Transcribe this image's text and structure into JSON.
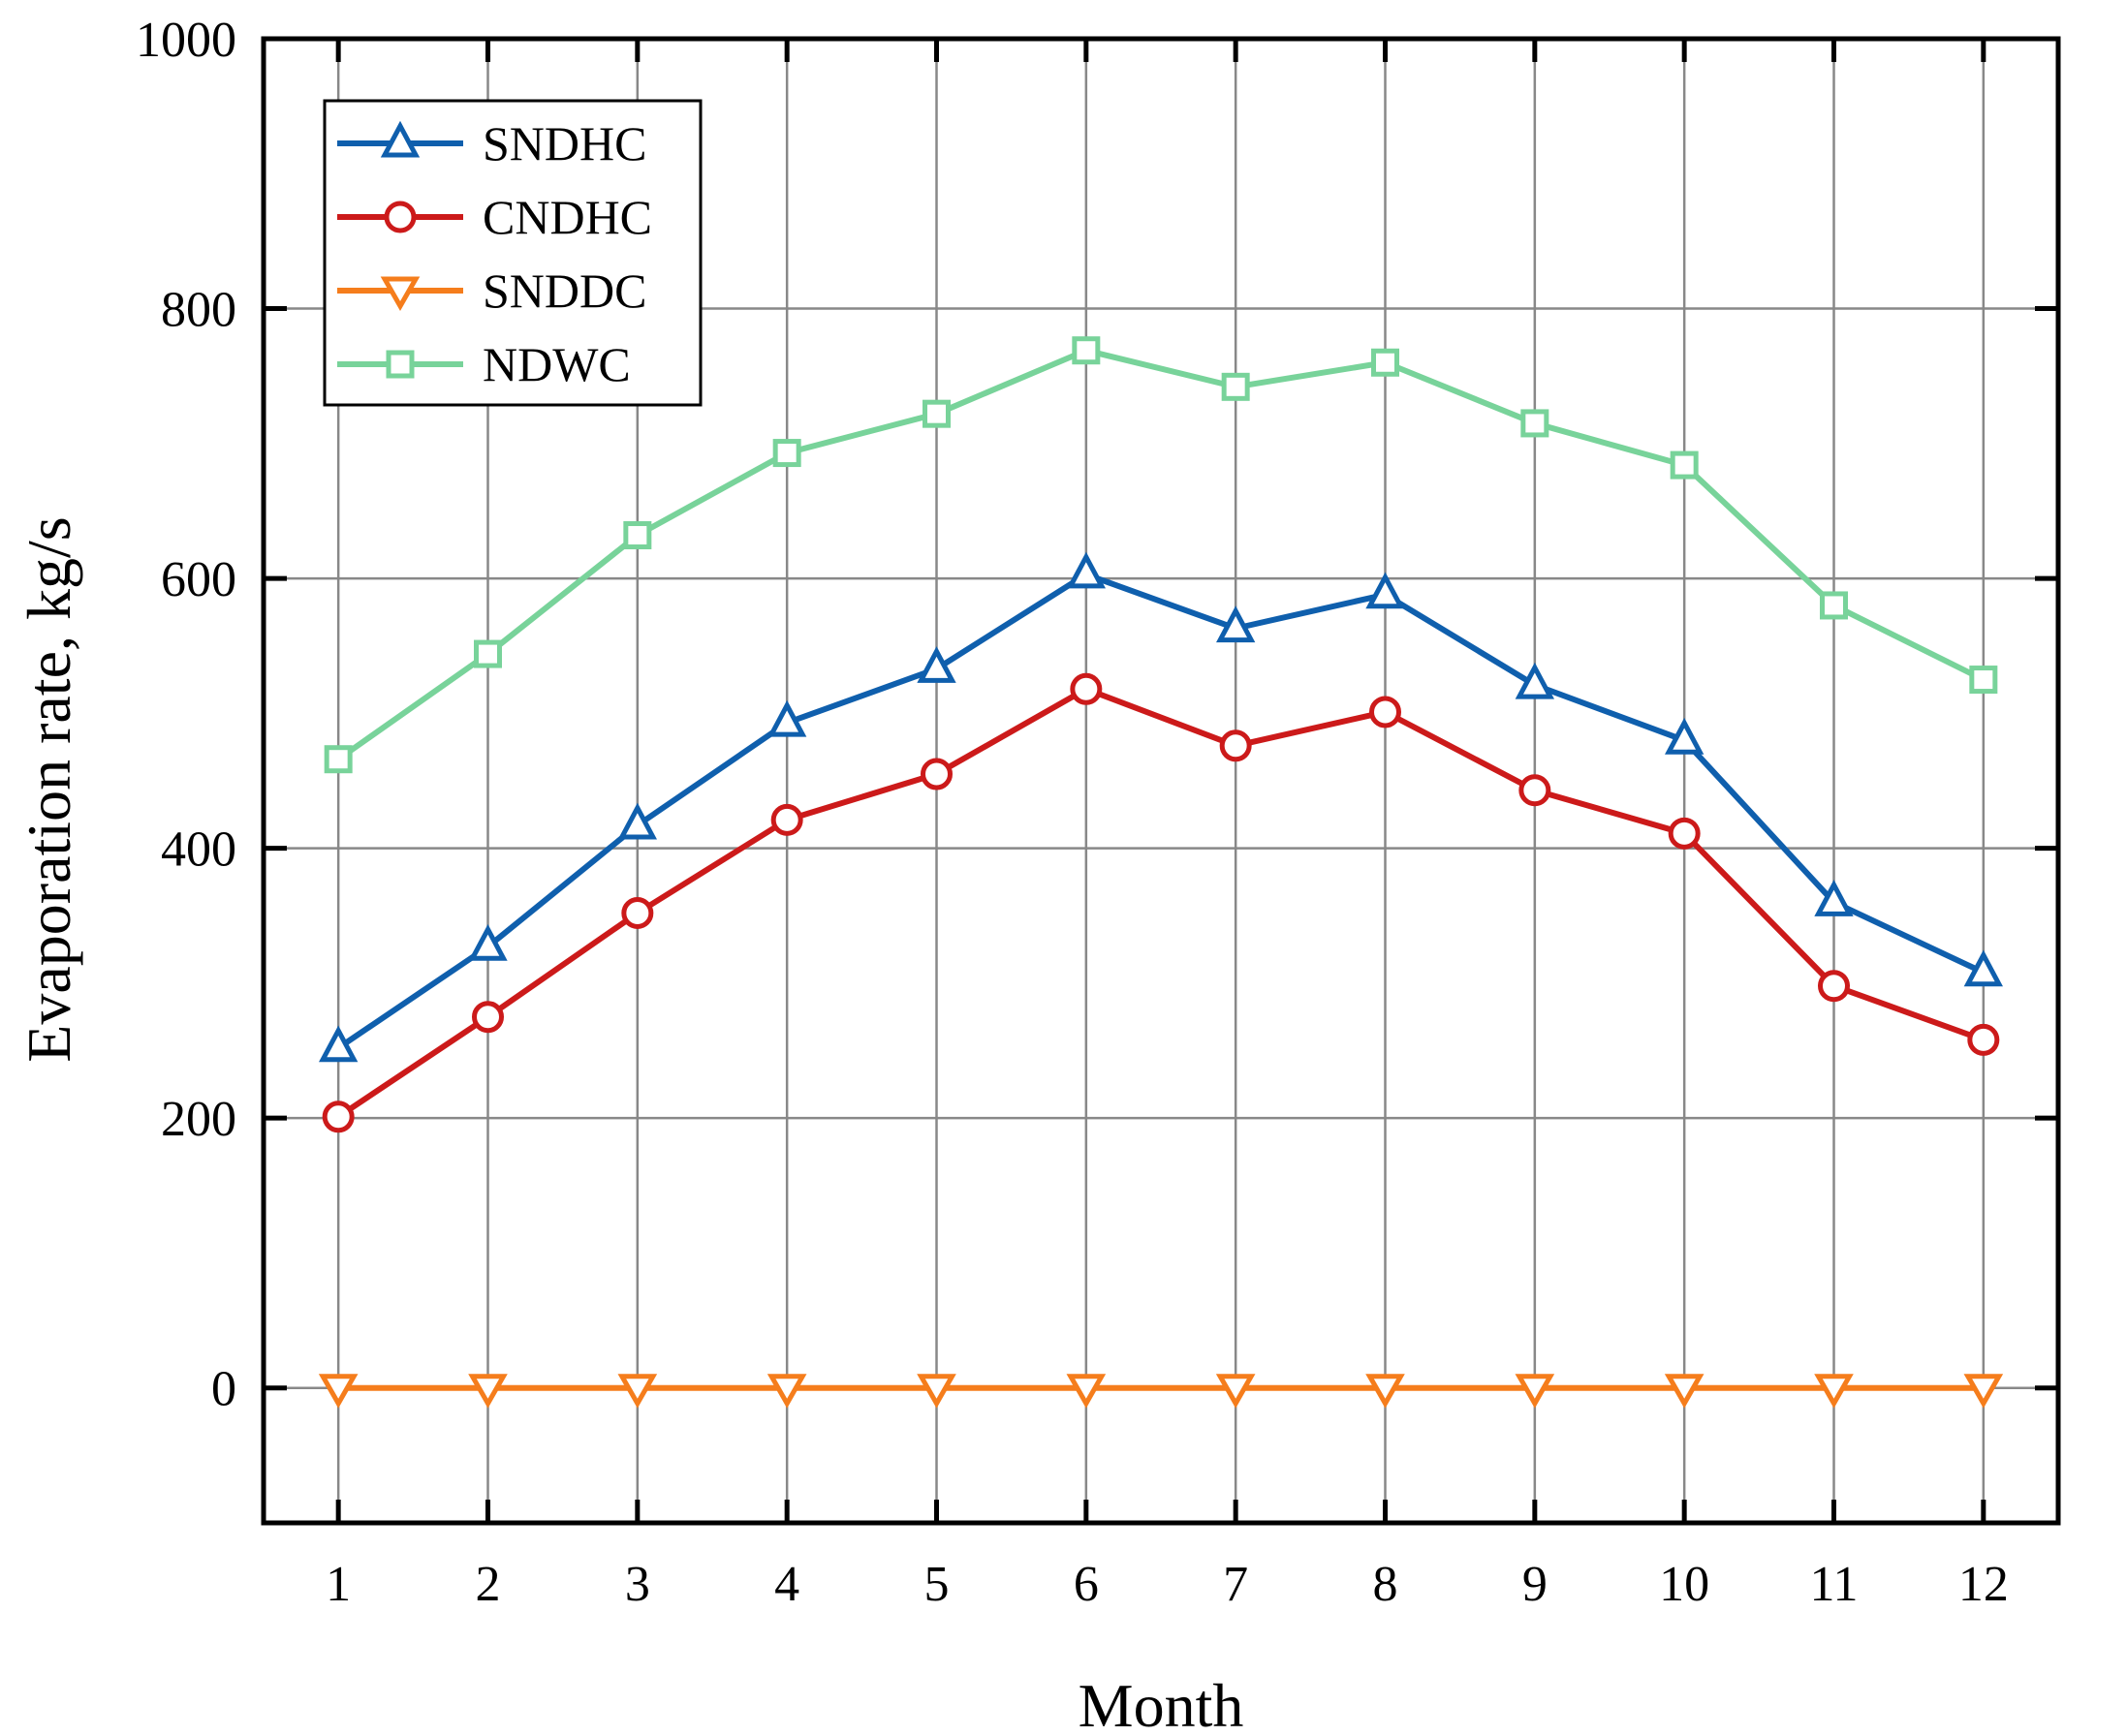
{
  "chart_data": {
    "type": "line",
    "title": "",
    "xlabel": "Month",
    "ylabel": "Evaporation rate, kg/s",
    "x": [
      1,
      2,
      3,
      4,
      5,
      6,
      7,
      8,
      9,
      10,
      11,
      12
    ],
    "x_tick_labels": [
      "1",
      "2",
      "3",
      "4",
      "5",
      "6",
      "7",
      "8",
      "9",
      "10",
      "11",
      "12"
    ],
    "xlim": [
      0.5,
      12.5
    ],
    "ylim": [
      -100,
      1000
    ],
    "y_ticks": [
      0,
      200,
      400,
      600,
      800,
      1000
    ],
    "y_tick_labels": [
      "0",
      "200",
      "400",
      "600",
      "800",
      "1000"
    ],
    "grid": true,
    "legend_position": "top-left",
    "series": [
      {
        "name": "SNDHC",
        "marker": "triangle-up",
        "color": "#0f5fad",
        "values": [
          252,
          327,
          417,
          493,
          533,
          603,
          563,
          588,
          521,
          480,
          360,
          308
        ]
      },
      {
        "name": "CNDHC",
        "marker": "circle",
        "color": "#cc1a1a",
        "values": [
          201,
          275,
          352,
          421,
          455,
          518,
          476,
          501,
          443,
          411,
          298,
          258
        ]
      },
      {
        "name": "SNDDC",
        "marker": "triangle-down",
        "color": "#f57d1c",
        "values": [
          0,
          0,
          0,
          0,
          0,
          0,
          0,
          0,
          0,
          0,
          0,
          0
        ]
      },
      {
        "name": "NDWC",
        "marker": "square",
        "color": "#78d39a",
        "values": [
          466,
          544,
          632,
          693,
          722,
          769,
          742,
          760,
          715,
          684,
          580,
          525
        ]
      }
    ]
  }
}
